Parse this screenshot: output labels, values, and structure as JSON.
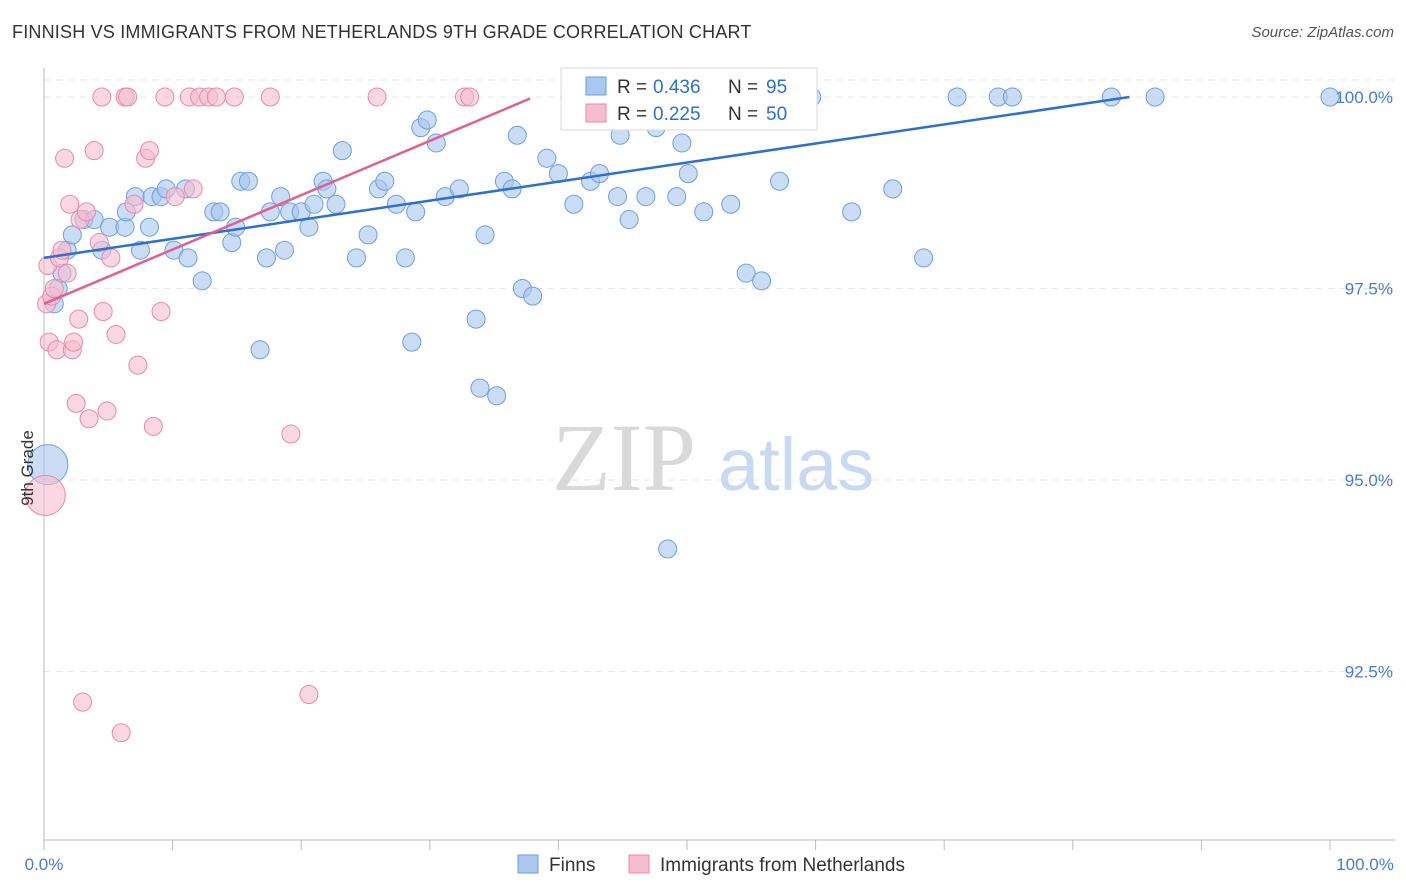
{
  "header": {
    "title": "FINNISH VS IMMIGRANTS FROM NETHERLANDS 9TH GRADE CORRELATION CHART",
    "source": "Source: ZipAtlas.com"
  },
  "watermark": {
    "zip": "ZIP",
    "atlas": "atlas"
  },
  "colors": {
    "finns_fill": "#a9c7ef",
    "finns_stroke": "#6f9fdc",
    "finns_line": "#2f6fce",
    "neth_fill": "#f6bccf",
    "neth_stroke": "#e98aa9",
    "neth_line": "#e0608f",
    "grid": "#e6e6e6",
    "tick_text": "#4a7cc9"
  },
  "legend": {
    "rows": [
      {
        "r_label": "R = ",
        "r_value": "0.436",
        "n_label": "N = ",
        "n_value": "95"
      },
      {
        "r_label": "R = ",
        "r_value": "0.225",
        "n_label": "N = ",
        "n_value": "50"
      }
    ]
  },
  "bottom_legend": [
    "Finns",
    "Immigrants from Netherlands"
  ],
  "chart_data": {
    "type": "scatter",
    "title": "FINNISH VS IMMIGRANTS FROM NETHERLANDS 9TH GRADE CORRELATION CHART",
    "xlabel": "",
    "ylabel": "9th Grade",
    "xlim": [
      0,
      100
    ],
    "ylim": [
      90.5,
      100.45
    ],
    "x_tick_labels": [
      "0.0%",
      "100.0%"
    ],
    "y_ticks": [
      92.5,
      95.0,
      97.5,
      100.0
    ],
    "y_tick_labels": [
      "92.5%",
      "95.0%",
      "97.5%",
      "100.0%"
    ],
    "grid": true,
    "legend_position": "top-center",
    "series": [
      {
        "name": "Finns",
        "R": 0.436,
        "N": 95,
        "trend": {
          "x": [
            0,
            84.4
          ],
          "y": [
            97.9,
            100.0
          ]
        },
        "points": [
          [
            0.3,
            95.2
          ],
          [
            0.8,
            97.3
          ],
          [
            1.1,
            97.5
          ],
          [
            1.4,
            97.7
          ],
          [
            1.8,
            98.0
          ],
          [
            2.2,
            98.2
          ],
          [
            3.1,
            98.4
          ],
          [
            3.9,
            98.4
          ],
          [
            4.5,
            98.0
          ],
          [
            5.1,
            98.3
          ],
          [
            6.3,
            98.3
          ],
          [
            6.4,
            98.5
          ],
          [
            7.1,
            98.7
          ],
          [
            7.5,
            98.0
          ],
          [
            8.2,
            98.3
          ],
          [
            8.4,
            98.7
          ],
          [
            9.1,
            98.7
          ],
          [
            9.5,
            98.8
          ],
          [
            10.1,
            98.0
          ],
          [
            11.0,
            98.8
          ],
          [
            11.2,
            97.9
          ],
          [
            12.3,
            97.6
          ],
          [
            13.2,
            98.5
          ],
          [
            13.7,
            98.5
          ],
          [
            14.6,
            98.1
          ],
          [
            14.9,
            98.3
          ],
          [
            15.3,
            98.9
          ],
          [
            15.9,
            98.9
          ],
          [
            16.8,
            96.7
          ],
          [
            17.3,
            97.9
          ],
          [
            17.6,
            98.5
          ],
          [
            18.4,
            98.7
          ],
          [
            18.7,
            98.0
          ],
          [
            19.1,
            98.5
          ],
          [
            20.0,
            98.5
          ],
          [
            20.6,
            98.3
          ],
          [
            21.0,
            98.6
          ],
          [
            21.7,
            98.9
          ],
          [
            22.0,
            98.8
          ],
          [
            22.7,
            98.6
          ],
          [
            23.2,
            99.3
          ],
          [
            24.3,
            97.9
          ],
          [
            25.2,
            98.2
          ],
          [
            26.0,
            98.8
          ],
          [
            26.5,
            98.9
          ],
          [
            27.4,
            98.6
          ],
          [
            28.1,
            97.9
          ],
          [
            28.6,
            96.8
          ],
          [
            28.9,
            98.5
          ],
          [
            29.3,
            99.6
          ],
          [
            29.8,
            99.7
          ],
          [
            30.5,
            99.4
          ],
          [
            31.2,
            98.7
          ],
          [
            32.3,
            98.8
          ],
          [
            33.6,
            97.1
          ],
          [
            33.9,
            96.2
          ],
          [
            34.3,
            98.2
          ],
          [
            35.2,
            96.1
          ],
          [
            35.8,
            98.9
          ],
          [
            36.4,
            98.8
          ],
          [
            36.8,
            99.5
          ],
          [
            37.2,
            97.5
          ],
          [
            38.0,
            97.4
          ],
          [
            39.1,
            99.2
          ],
          [
            40.0,
            99.0
          ],
          [
            41.2,
            98.6
          ],
          [
            42.5,
            98.9
          ],
          [
            43.2,
            99.0
          ],
          [
            44.6,
            98.7
          ],
          [
            44.8,
            99.5
          ],
          [
            45.5,
            98.4
          ],
          [
            46.8,
            98.7
          ],
          [
            47.6,
            99.6
          ],
          [
            47.9,
            100.0
          ],
          [
            48.5,
            94.1
          ],
          [
            49.2,
            98.7
          ],
          [
            49.6,
            99.4
          ],
          [
            50.1,
            99.0
          ],
          [
            51.3,
            98.5
          ],
          [
            53.4,
            98.6
          ],
          [
            54.6,
            97.7
          ],
          [
            55.8,
            97.6
          ],
          [
            57.2,
            98.9
          ],
          [
            59.7,
            100.0
          ],
          [
            62.8,
            98.5
          ],
          [
            66.0,
            98.8
          ],
          [
            68.4,
            97.9
          ],
          [
            71.0,
            100.0
          ],
          [
            74.2,
            100.0
          ],
          [
            75.3,
            100.0
          ],
          [
            83.0,
            100.0
          ],
          [
            86.4,
            100.0
          ],
          [
            100.0,
            100.0
          ],
          [
            44.2,
            100.0
          ],
          [
            52.0,
            100.0
          ]
        ]
      },
      {
        "name": "Immigrants from Netherlands",
        "R": 0.225,
        "N": 50,
        "trend": {
          "x": [
            0,
            37.8
          ],
          "y": [
            97.3,
            99.98
          ]
        },
        "points": [
          [
            0.1,
            94.8
          ],
          [
            0.2,
            97.3
          ],
          [
            0.3,
            97.8
          ],
          [
            0.4,
            96.8
          ],
          [
            0.6,
            97.4
          ],
          [
            0.8,
            97.5
          ],
          [
            1.0,
            96.7
          ],
          [
            1.2,
            97.9
          ],
          [
            1.4,
            98.0
          ],
          [
            1.6,
            99.2
          ],
          [
            1.8,
            97.7
          ],
          [
            2.0,
            98.6
          ],
          [
            2.2,
            96.7
          ],
          [
            2.3,
            96.8
          ],
          [
            2.5,
            96.0
          ],
          [
            2.7,
            97.1
          ],
          [
            2.8,
            98.4
          ],
          [
            3.0,
            92.1
          ],
          [
            3.3,
            98.5
          ],
          [
            3.5,
            95.8
          ],
          [
            3.9,
            99.3
          ],
          [
            4.3,
            98.1
          ],
          [
            4.6,
            97.2
          ],
          [
            4.9,
            95.9
          ],
          [
            5.2,
            97.9
          ],
          [
            5.6,
            96.9
          ],
          [
            6.0,
            91.7
          ],
          [
            6.3,
            100.0
          ],
          [
            6.5,
            100.0
          ],
          [
            7.0,
            98.6
          ],
          [
            7.3,
            96.5
          ],
          [
            7.9,
            99.2
          ],
          [
            8.2,
            99.3
          ],
          [
            8.5,
            95.7
          ],
          [
            9.1,
            97.2
          ],
          [
            9.4,
            100.0
          ],
          [
            10.2,
            98.7
          ],
          [
            11.3,
            100.0
          ],
          [
            11.6,
            98.8
          ],
          [
            12.1,
            100.0
          ],
          [
            12.8,
            100.0
          ],
          [
            13.4,
            100.0
          ],
          [
            14.8,
            100.0
          ],
          [
            17.6,
            100.0
          ],
          [
            19.2,
            95.6
          ],
          [
            20.6,
            92.2
          ],
          [
            25.9,
            100.0
          ],
          [
            32.7,
            100.0
          ],
          [
            33.1,
            100.0
          ],
          [
            4.5,
            100.0
          ]
        ]
      }
    ]
  }
}
